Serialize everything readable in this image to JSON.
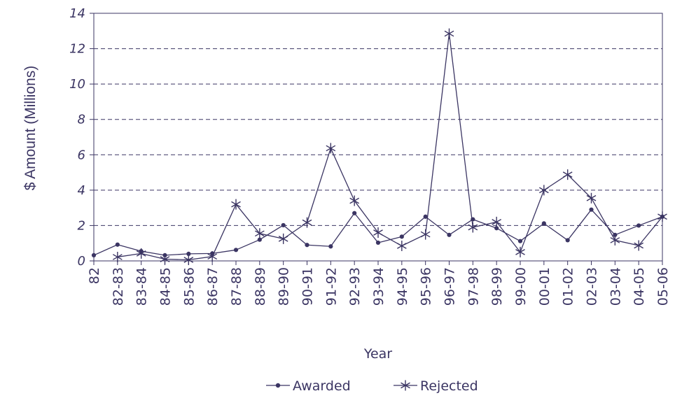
{
  "chart_data": {
    "type": "line",
    "title": "",
    "xlabel": "Year",
    "ylabel": "$ Amount (Millions)",
    "ylim": [
      0,
      14
    ],
    "yticks": [
      0,
      2,
      4,
      6,
      8,
      10,
      12,
      14
    ],
    "grid": "horizontal-dashed",
    "legend_position": "bottom-center",
    "categories": [
      "82",
      "82-83",
      "83-84",
      "84-85",
      "85-86",
      "86-87",
      "87-88",
      "88-89",
      "89-90",
      "90-91",
      "91-92",
      "92-93",
      "93-94",
      "94-95",
      "95-96",
      "96-97",
      "97-98",
      "98-99",
      "99-00",
      "00-01",
      "01-02",
      "02-03",
      "03-04",
      "04-05",
      "05-06"
    ],
    "series": [
      {
        "name": "Awarded",
        "marker": "dot",
        "values": [
          0.32,
          0.92,
          0.55,
          0.32,
          0.4,
          0.42,
          0.62,
          1.2,
          2.02,
          0.9,
          0.82,
          2.7,
          1.03,
          1.37,
          2.5,
          1.47,
          2.35,
          1.85,
          1.12,
          2.12,
          1.17,
          2.9,
          1.47,
          2.0,
          2.5
        ]
      },
      {
        "name": "Rejected",
        "marker": "star",
        "values": [
          null,
          0.22,
          0.42,
          0.1,
          0.06,
          0.25,
          3.2,
          1.55,
          1.25,
          2.17,
          6.37,
          3.4,
          1.6,
          0.85,
          1.5,
          12.85,
          1.9,
          2.2,
          0.5,
          4.0,
          4.88,
          3.55,
          1.17,
          0.87,
          2.5
        ]
      }
    ],
    "colors": {
      "line": "#3b3563",
      "text": "#3b3563",
      "grid": "#3b3563"
    }
  }
}
